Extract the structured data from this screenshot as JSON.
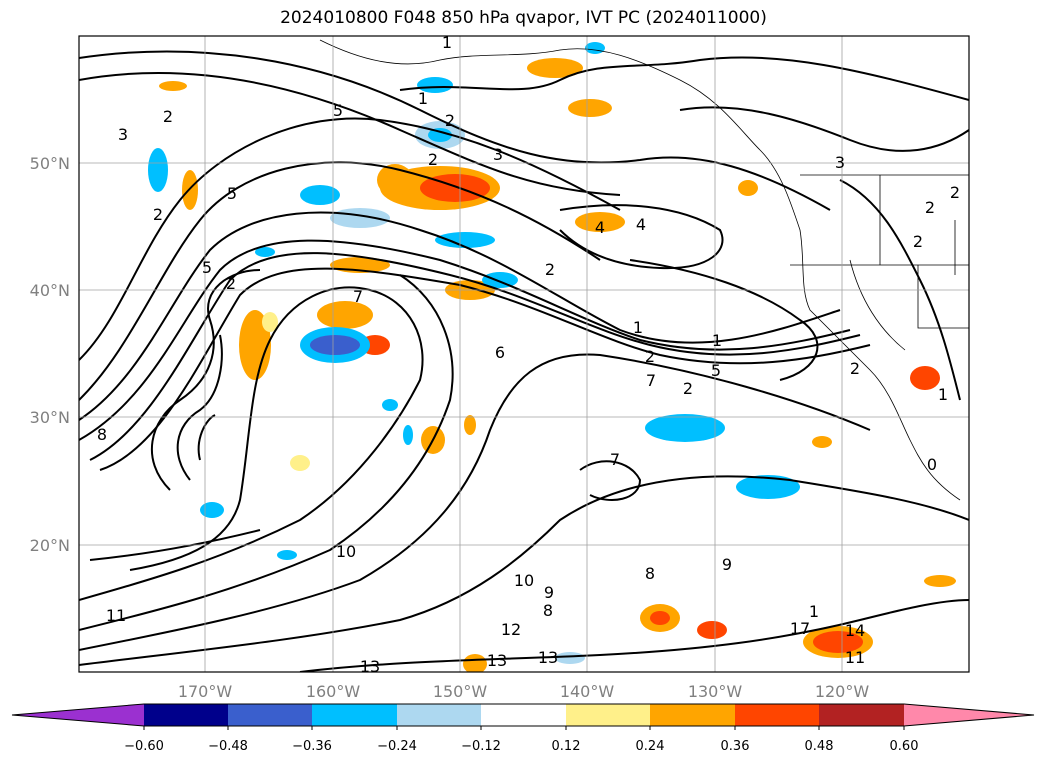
{
  "title": "2024010800 F048 850 hPa qvapor, IVT PC (2024011000)",
  "map": {
    "lon_labels": [
      "170°W",
      "160°W",
      "150°W",
      "140°W",
      "130°W",
      "120°W"
    ],
    "lat_labels": [
      "50°N",
      "40°N",
      "30°N",
      "20°N"
    ],
    "contour_labels": [
      "1",
      "2",
      "2",
      "3",
      "1",
      "2",
      "5",
      "3",
      "2",
      "5",
      "4",
      "4",
      "2",
      "5",
      "2",
      "7",
      "1",
      "1",
      "6",
      "2",
      "5",
      "7",
      "2",
      "7",
      "8",
      "10",
      "9",
      "8",
      "10",
      "9",
      "8",
      "11",
      "12",
      "13",
      "13",
      "13",
      "14",
      "17",
      "11",
      "1",
      "3",
      "2",
      "2",
      "2",
      "2",
      "1",
      "0"
    ]
  },
  "colorbar": {
    "ticks": [
      "−0.60",
      "−0.48",
      "−0.36",
      "−0.24",
      "−0.12",
      "0.12",
      "0.24",
      "0.36",
      "0.48",
      "0.60"
    ],
    "colors": [
      "#9b30d0",
      "#00008b",
      "#3a5fcd",
      "#00bfff",
      "#add8f0",
      "#ffffff",
      "#fff08a",
      "#ffa500",
      "#ff4500",
      "#b22222",
      "#ff88aa"
    ]
  }
}
